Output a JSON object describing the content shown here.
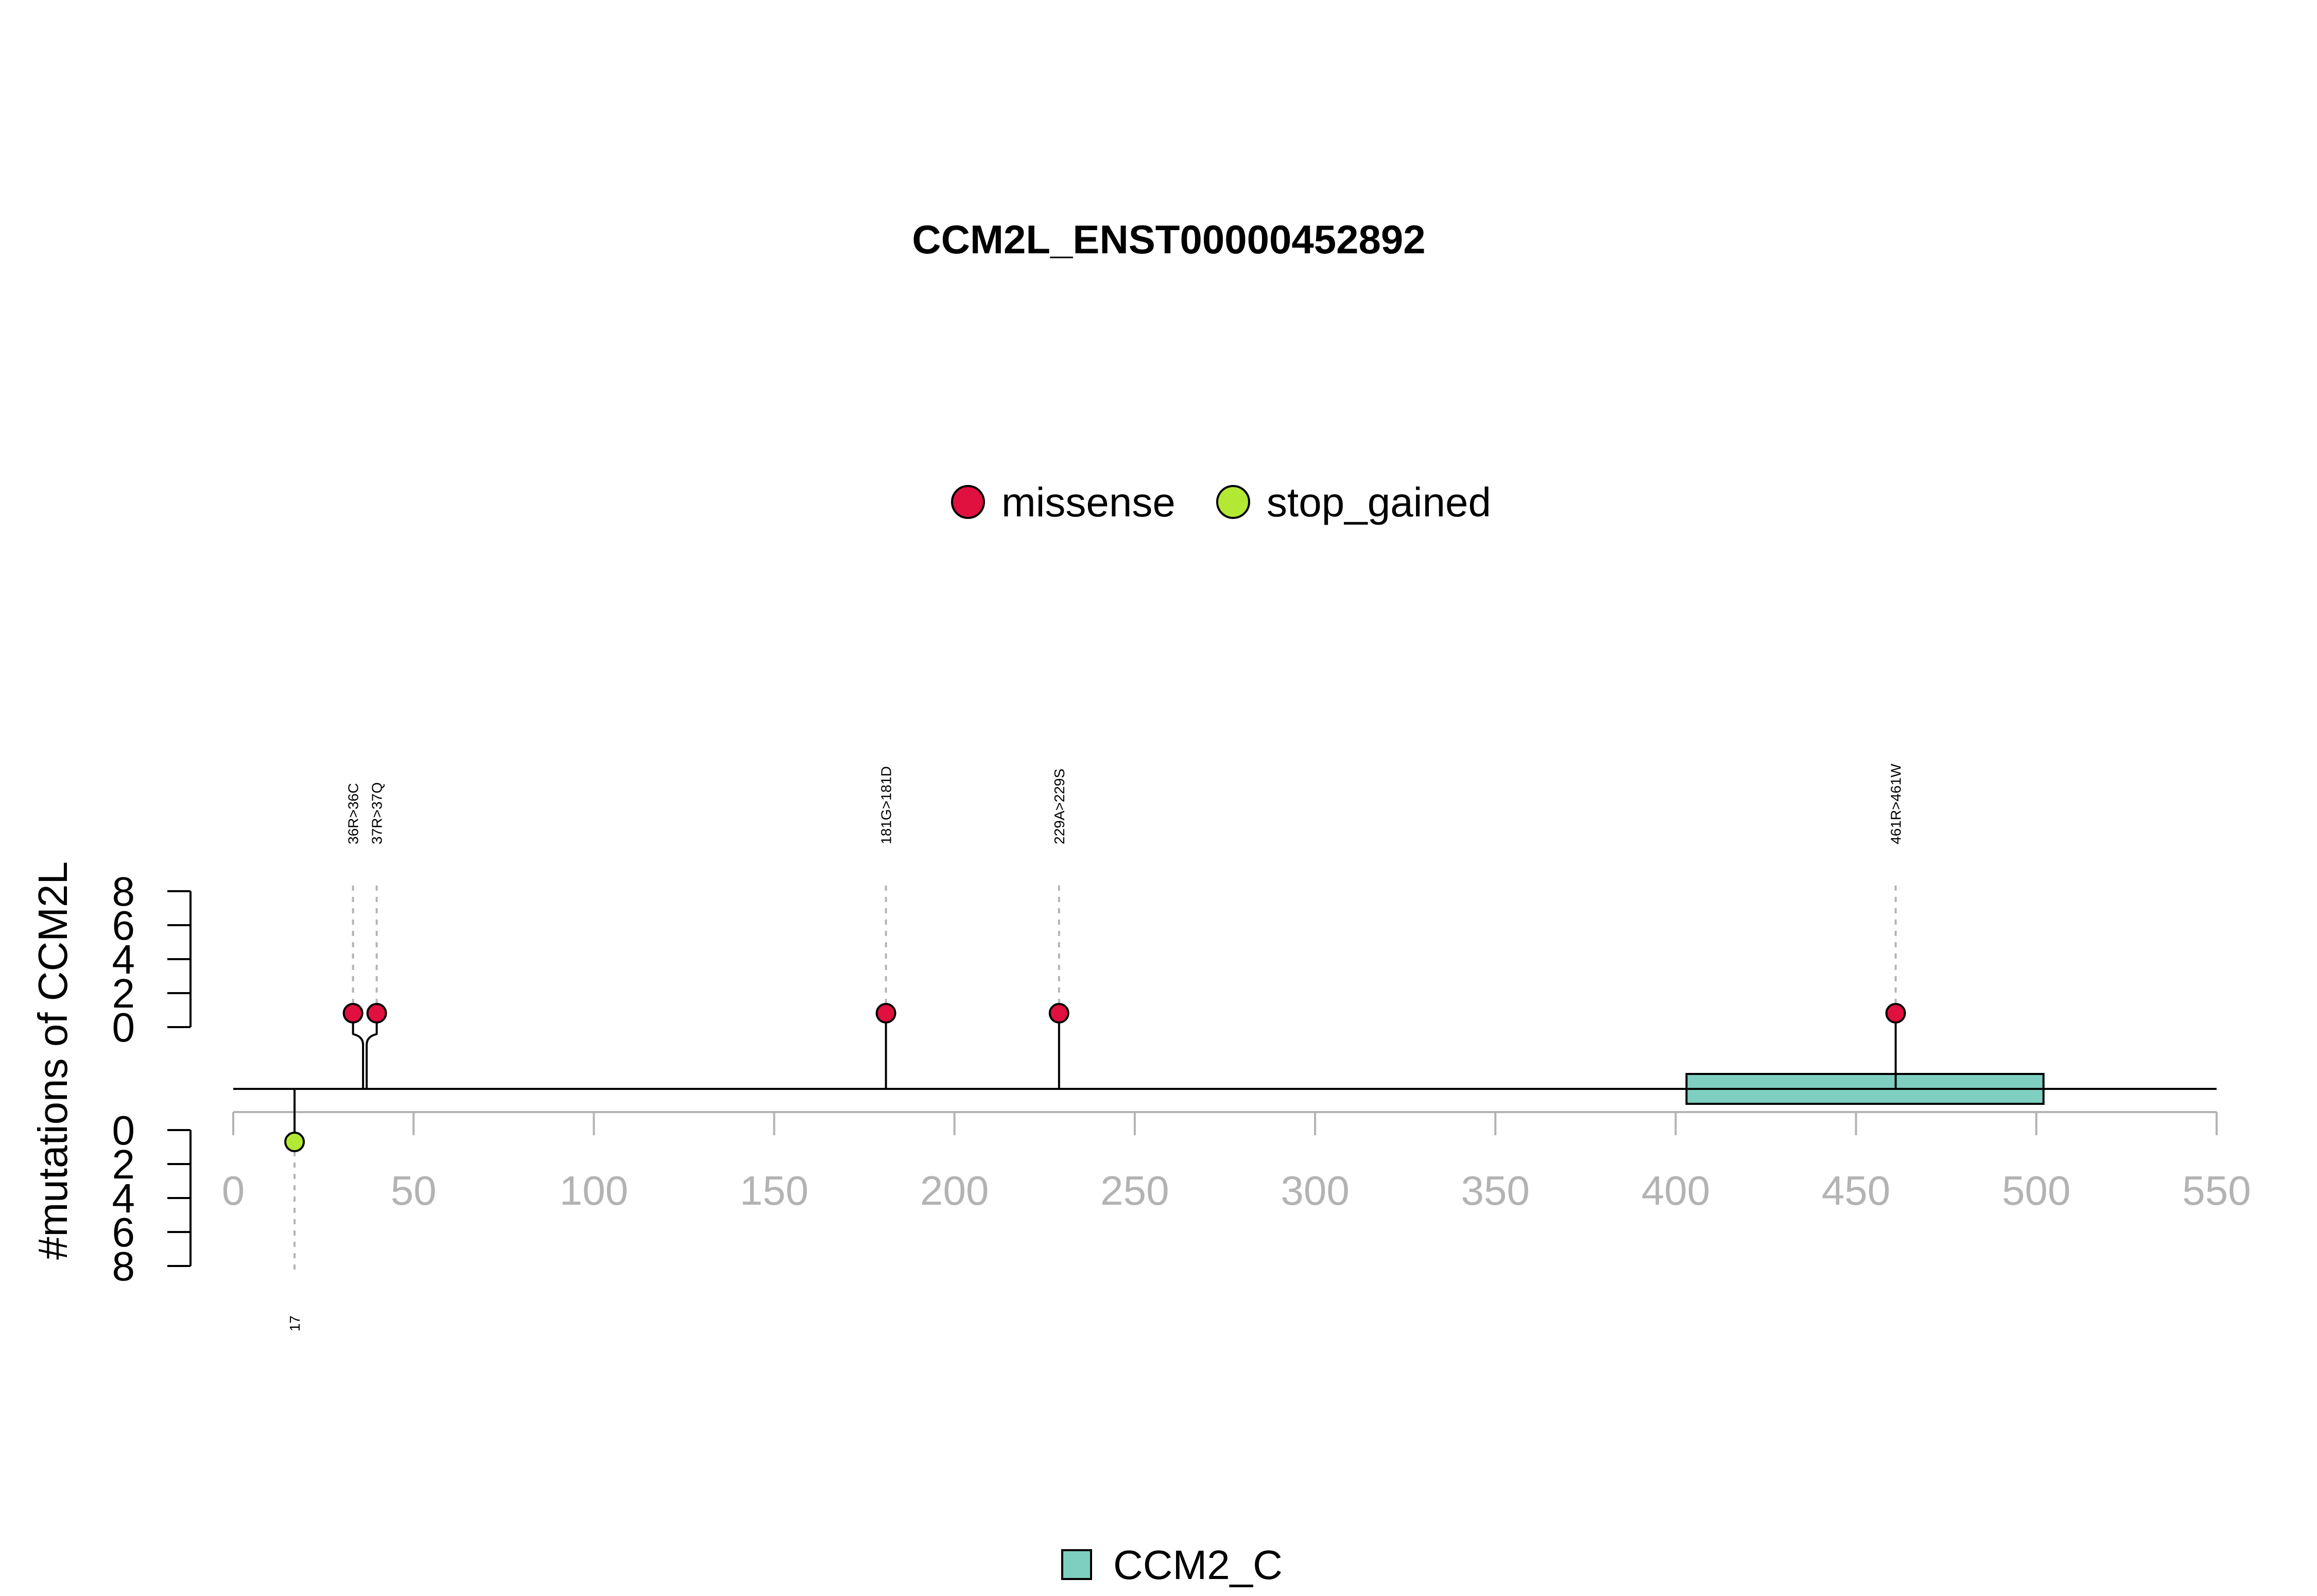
{
  "chart_data": {
    "type": "lollipop",
    "title": "CCM2L_ENST00000452892",
    "ylabel": "#mutations of CCM2L",
    "xlim": [
      0,
      550
    ],
    "x_ticks": [
      0,
      50,
      100,
      150,
      200,
      250,
      300,
      350,
      400,
      450,
      500,
      550
    ],
    "y_ticks_top": [
      0,
      2,
      4,
      6,
      8
    ],
    "y_ticks_bottom": [
      0,
      2,
      4,
      6,
      8
    ],
    "legend_top": [
      {
        "label": "missense",
        "color": "#e0103f"
      },
      {
        "label": "stop_gained",
        "color": "#b3e835"
      }
    ],
    "legend_bottom": [
      {
        "label": "CCM2_C",
        "color": "#7ecfbf"
      }
    ],
    "domains": [
      {
        "name": "CCM2_C",
        "start": 403,
        "end": 502,
        "color": "#7ecfbf"
      }
    ],
    "mutations_top": [
      {
        "label": "36R>36C",
        "position": 36,
        "count": 1,
        "type": "missense",
        "color": "#e0103f"
      },
      {
        "label": "37R>37Q",
        "position": 37,
        "count": 1,
        "type": "missense",
        "color": "#e0103f"
      },
      {
        "label": "181G>181D",
        "position": 181,
        "count": 1,
        "type": "missense",
        "color": "#e0103f"
      },
      {
        "label": "229A>229S",
        "position": 229,
        "count": 1,
        "type": "missense",
        "color": "#e0103f"
      },
      {
        "label": "461R>461W",
        "position": 461,
        "count": 1,
        "type": "missense",
        "color": "#e0103f"
      }
    ],
    "mutations_bottom": [
      {
        "label": "17",
        "position": 17,
        "count": 1,
        "type": "stop_gained",
        "color": "#b3e835"
      }
    ]
  }
}
